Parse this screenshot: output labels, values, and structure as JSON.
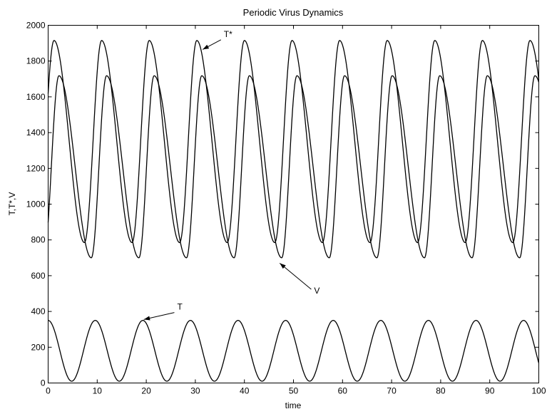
{
  "chart_data": {
    "type": "line",
    "title": "Periodic Virus Dynamics",
    "xlabel": "time",
    "ylabel": "T,T*,V",
    "xlim": [
      0,
      100
    ],
    "ylim": [
      0,
      2000
    ],
    "xticks": [
      0,
      10,
      20,
      30,
      40,
      50,
      60,
      70,
      80,
      90,
      100
    ],
    "yticks": [
      0,
      200,
      400,
      600,
      800,
      1000,
      1200,
      1400,
      1600,
      1800,
      2000
    ],
    "grid": false,
    "period": 9.7,
    "series": [
      {
        "name": "T*",
        "min": 785,
        "max": 1915,
        "peak_times": [
          1.2,
          10.9,
          20.6,
          30.3,
          40.0,
          49.7,
          59.4,
          69.1,
          78.8,
          88.5,
          98.2
        ],
        "trough_times": [
          7.4,
          17.1,
          26.8,
          36.5,
          46.2,
          55.9,
          65.6,
          75.3,
          85.0,
          94.7
        ]
      },
      {
        "name": "V",
        "min": 700,
        "max": 1718,
        "peak_times": [
          2.2,
          11.9,
          21.6,
          31.3,
          41.0,
          50.7,
          60.4,
          70.1,
          79.8,
          89.5,
          99.2
        ],
        "trough_times": [
          8.8,
          18.5,
          28.2,
          37.9,
          47.6,
          57.3,
          67.0,
          76.7,
          86.4,
          96.1
        ]
      },
      {
        "name": "T",
        "min": 10,
        "max": 350,
        "peak_times": [
          0.0,
          9.6,
          19.3,
          29.0,
          38.7,
          48.4,
          58.1,
          67.8,
          77.5,
          87.2,
          96.9
        ],
        "trough_times": [
          4.8,
          14.5,
          24.2,
          33.9,
          43.6,
          53.3,
          63.0,
          72.7,
          82.4,
          92.1
        ]
      }
    ],
    "annotations": [
      {
        "text": "T*",
        "label_x": 35.8,
        "label_y": 1935,
        "arrow_to_x": 31.5,
        "arrow_to_y": 1865
      },
      {
        "text": "V",
        "label_x": 54.2,
        "label_y": 500,
        "arrow_to_x": 47.2,
        "arrow_to_y": 670
      },
      {
        "text": "T",
        "label_x": 26.3,
        "label_y": 410,
        "arrow_to_x": 19.5,
        "arrow_to_y": 355
      }
    ]
  }
}
